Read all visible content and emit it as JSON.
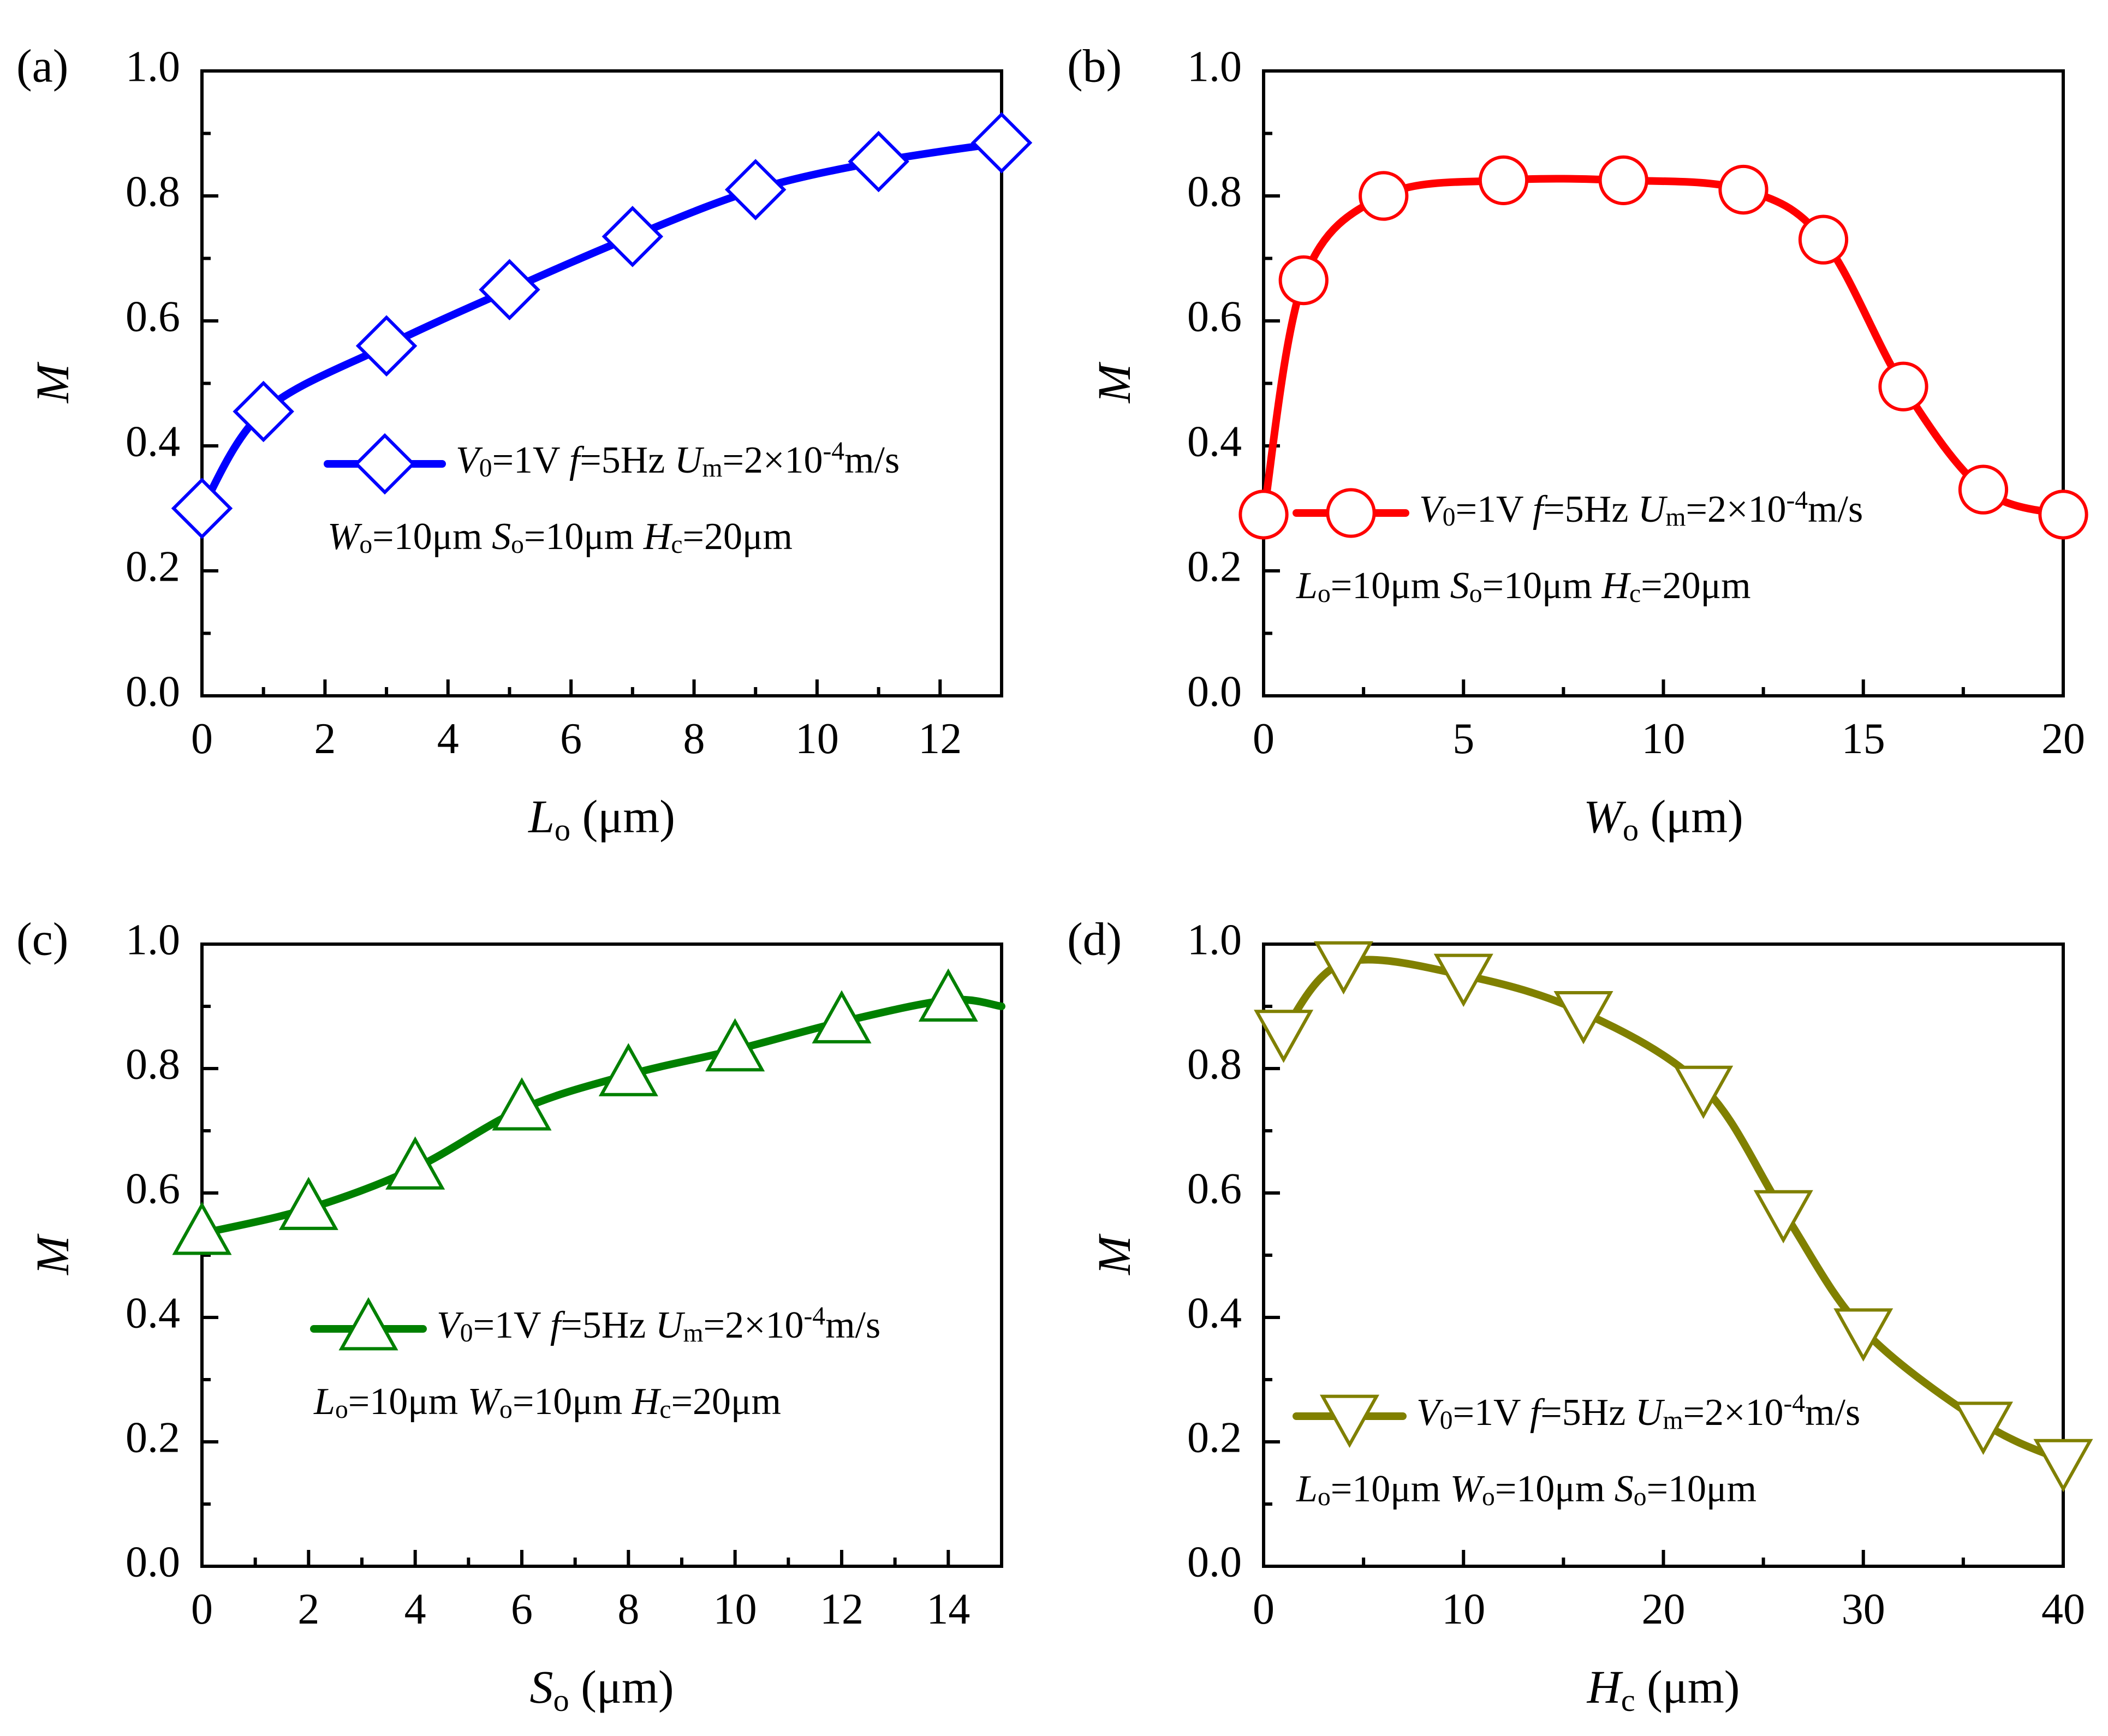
{
  "colors": {
    "a": "#0000ff",
    "b": "#ff0000",
    "c": "#008000",
    "d": "#808000"
  },
  "chart_data": [
    {
      "panel": "(a)",
      "type": "line",
      "marker": "diamond",
      "xlabel_main": "L",
      "xlabel_sub": "o",
      "xlabel_unit": "(μm)",
      "ylabel": "M",
      "xlim": [
        0,
        13
      ],
      "ylim": [
        0,
        1.0
      ],
      "xticks": [
        0,
        2,
        4,
        6,
        8,
        10,
        12
      ],
      "xtick_labels": [
        "0",
        "2",
        "4",
        "6",
        "8",
        "10",
        "12"
      ],
      "yticks": [
        0,
        0.2,
        0.4,
        0.6,
        0.8,
        1.0
      ],
      "ytick_labels": [
        "0.0",
        "0.2",
        "0.4",
        "0.6",
        "0.8",
        "1.0"
      ],
      "x": [
        0,
        1,
        3,
        5,
        7,
        9,
        11,
        13
      ],
      "y": [
        0.3,
        0.455,
        0.56,
        0.65,
        0.735,
        0.81,
        0.855,
        0.885
      ],
      "legend_line1": "V0=1V f=5Hz Um=2×10-4m/s",
      "legend_line2": "Wo=10μm So=10μm Hc=20μm",
      "legend_position": "center-right",
      "series_color": "#0000ff"
    },
    {
      "panel": "(b)",
      "type": "line",
      "marker": "circle",
      "xlabel_main": "W",
      "xlabel_sub": "o",
      "xlabel_unit": "(μm)",
      "ylabel": "M",
      "xlim": [
        0,
        20
      ],
      "ylim": [
        0,
        1.0
      ],
      "xticks": [
        0,
        5,
        10,
        15,
        20
      ],
      "xtick_labels": [
        "0",
        "5",
        "10",
        "15",
        "20"
      ],
      "yticks": [
        0,
        0.2,
        0.4,
        0.6,
        0.8,
        1.0
      ],
      "ytick_labels": [
        "0.0",
        "0.2",
        "0.4",
        "0.6",
        "0.8",
        "1.0"
      ],
      "x": [
        0,
        1,
        3,
        6,
        9,
        12,
        14,
        16,
        18,
        20
      ],
      "y": [
        0.29,
        0.665,
        0.8,
        0.825,
        0.825,
        0.81,
        0.73,
        0.495,
        0.33,
        0.29
      ],
      "legend_line1": "V0=1V f=5Hz Um=2×10-4m/s",
      "legend_line2": "Lo=10μm So=10μm Hc=20μm",
      "legend_position": "lower-center",
      "series_color": "#ff0000"
    },
    {
      "panel": "(c)",
      "type": "line",
      "marker": "triangle-up",
      "xlabel_main": "S",
      "xlabel_sub": "o",
      "xlabel_unit": "(μm)",
      "ylabel": "M",
      "xlim": [
        0,
        15
      ],
      "ylim": [
        0,
        1.0
      ],
      "xticks": [
        0,
        2,
        4,
        6,
        8,
        10,
        12,
        14
      ],
      "xtick_labels": [
        "0",
        "2",
        "4",
        "6",
        "8",
        "10",
        "12",
        "14"
      ],
      "yticks": [
        0,
        0.2,
        0.4,
        0.6,
        0.8,
        1.0
      ],
      "ytick_labels": [
        "0.0",
        "0.2",
        "0.4",
        "0.6",
        "0.8",
        "1.0"
      ],
      "x": [
        0,
        2,
        4,
        6,
        8,
        10,
        12,
        14,
        15
      ],
      "y": [
        0.535,
        0.575,
        0.64,
        0.735,
        0.79,
        0.83,
        0.875,
        0.91,
        0.9
      ],
      "marker_indices": [
        0,
        1,
        2,
        3,
        4,
        5,
        6,
        7
      ],
      "legend_line1": "V0=1V f=5Hz Um=2×10-4m/s",
      "legend_line2": "Lo=10μm Wo=10μm Hc=20μm",
      "legend_position": "center",
      "series_color": "#008000"
    },
    {
      "panel": "(d)",
      "type": "line",
      "marker": "triangle-down",
      "xlabel_main": "H",
      "xlabel_sub": "c",
      "xlabel_unit": "(μm)",
      "ylabel": "M",
      "xlim": [
        0,
        40
      ],
      "ylim": [
        0,
        1.0
      ],
      "xticks": [
        0,
        10,
        20,
        30,
        40
      ],
      "xtick_labels": [
        "0",
        "10",
        "20",
        "30",
        "40"
      ],
      "yticks": [
        0,
        0.2,
        0.4,
        0.6,
        0.8,
        1.0
      ],
      "ytick_labels": [
        "0.0",
        "0.2",
        "0.4",
        "0.6",
        "0.8",
        "1.0"
      ],
      "x": [
        1,
        4,
        10,
        16,
        22,
        26,
        30,
        36,
        40
      ],
      "y": [
        0.86,
        0.97,
        0.95,
        0.89,
        0.77,
        0.57,
        0.38,
        0.23,
        0.17
      ],
      "legend_line1": "V0=1V f=5Hz Um=2×10-4m/s",
      "legend_line2": "Lo=10μm Wo=10μm So=10μm",
      "legend_position": "lower-left",
      "series_color": "#808000"
    }
  ]
}
